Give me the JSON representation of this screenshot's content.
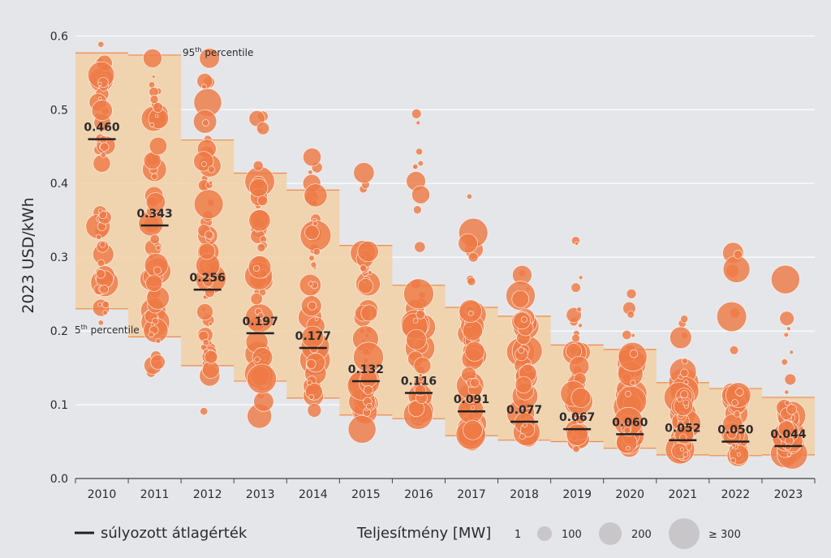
{
  "chart_data": {
    "type": "scatter",
    "ylabel": "2023 USD/kWh",
    "ylim": [
      0,
      0.62
    ],
    "yticks": [
      "0.0",
      "0.1",
      "0.2",
      "0.3",
      "0.4",
      "0.5",
      "0.6"
    ],
    "grid": true,
    "categories": [
      "2010",
      "2011",
      "2012",
      "2013",
      "2014",
      "2015",
      "2016",
      "2017",
      "2018",
      "2019",
      "2020",
      "2021",
      "2022",
      "2023"
    ],
    "weighted_average": [
      0.46,
      0.343,
      0.256,
      0.197,
      0.177,
      0.132,
      0.116,
      0.091,
      0.077,
      0.067,
      0.06,
      0.052,
      0.05,
      0.044
    ],
    "weighted_average_labels": [
      "0.460",
      "0.343",
      "0.256",
      "0.197",
      "0.177",
      "0.132",
      "0.116",
      "0.091",
      "0.077",
      "0.067",
      "0.060",
      "0.052",
      "0.050",
      "0.044"
    ],
    "p95": [
      0.577,
      0.574,
      0.459,
      0.414,
      0.391,
      0.316,
      0.262,
      0.232,
      0.22,
      0.181,
      0.175,
      0.13,
      0.122,
      0.11
    ],
    "p5": [
      0.23,
      0.192,
      0.153,
      0.132,
      0.109,
      0.086,
      0.081,
      0.058,
      0.052,
      0.05,
      0.041,
      0.032,
      0.031,
      0.032
    ],
    "y_spread": [
      [
        0.13,
        0.6
      ],
      [
        0.09,
        0.6
      ],
      [
        0.085,
        0.59
      ],
      [
        0.07,
        0.51
      ],
      [
        0.09,
        0.48
      ],
      [
        0.045,
        0.49
      ],
      [
        0.06,
        0.5
      ],
      [
        0.045,
        0.39
      ],
      [
        0.035,
        0.3
      ],
      [
        0.025,
        0.34
      ],
      [
        0.02,
        0.27
      ],
      [
        0.02,
        0.23
      ],
      [
        0.015,
        0.33
      ],
      [
        0.015,
        0.27
      ]
    ],
    "p95_label": "95th percentile",
    "p5_label": "5th percentile",
    "p95_label_parts": {
      "value": "95",
      "sup": "th",
      "rest": " percentile"
    },
    "p5_label_parts": {
      "value": "5",
      "sup": "th",
      "rest": " percentile"
    },
    "legend": {
      "avg_label": "súlyozott átlagérték",
      "size_title": "Teljesítmény [MW]",
      "sizes": [
        "1",
        "100",
        "200",
        "≥ 300"
      ]
    },
    "colors": {
      "bubble": "#ee7a45",
      "bubble_stroke": "#ffffff",
      "band": "#f2cfa5",
      "band_edge": "#ee8a4a",
      "grid": "#ffffff",
      "avg": "#222222",
      "legend_bubble": "#c8c6c8"
    }
  }
}
